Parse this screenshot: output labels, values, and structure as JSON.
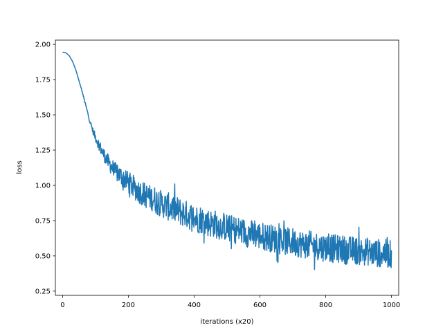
{
  "chart_data": {
    "type": "line",
    "title": "",
    "xlabel": "iterations (x20)",
    "ylabel": "loss",
    "xlim": [
      -22,
      1022
    ],
    "ylim": [
      0.22,
      2.03
    ],
    "grid": false,
    "legend": "none",
    "x_ticks": [
      0,
      200,
      400,
      600,
      800,
      1000
    ],
    "y_ticks": [
      0.25,
      0.5,
      0.75,
      1.0,
      1.25,
      1.5,
      1.75,
      2.0
    ],
    "x_tick_labels": [
      "0",
      "200",
      "400",
      "600",
      "800",
      "1000"
    ],
    "y_tick_labels": [
      "0.25",
      "0.50",
      "0.75",
      "1.00",
      "1.25",
      "1.50",
      "1.75",
      "2.00"
    ],
    "series": [
      {
        "color": "#1f77b4",
        "x_start": 0,
        "x_step": 10,
        "y_low": [
          1.945,
          1.94,
          1.92,
          1.88,
          1.82,
          1.74,
          1.66,
          1.57,
          1.48,
          1.4,
          1.34,
          1.29,
          1.24,
          1.2,
          1.16,
          1.13,
          1.1,
          1.08,
          1.06,
          1.04,
          1.02,
          1.0,
          0.98,
          0.96,
          0.95,
          0.93,
          0.92,
          0.91,
          0.9,
          0.88,
          0.87,
          0.86,
          0.85,
          0.84,
          0.83,
          0.82,
          0.81,
          0.8,
          0.79,
          0.78,
          0.77,
          0.76,
          0.76,
          0.75,
          0.74,
          0.73,
          0.73,
          0.72,
          0.71,
          0.71,
          0.7,
          0.69,
          0.69,
          0.68,
          0.68,
          0.67,
          0.66,
          0.66,
          0.65,
          0.65,
          0.64,
          0.64,
          0.63,
          0.63,
          0.62,
          0.62,
          0.61,
          0.61,
          0.6,
          0.6,
          0.6,
          0.59,
          0.59,
          0.58,
          0.58,
          0.58,
          0.57,
          0.57,
          0.57,
          0.56,
          0.56,
          0.56,
          0.55,
          0.55,
          0.55,
          0.55,
          0.54,
          0.54,
          0.54,
          0.54,
          0.53,
          0.53,
          0.53,
          0.53,
          0.52,
          0.52,
          0.52,
          0.52,
          0.52,
          0.51,
          0.51
        ],
        "y_high": [
          1.945,
          1.94,
          1.92,
          1.88,
          1.82,
          1.74,
          1.66,
          1.57,
          1.48,
          1.4,
          1.34,
          1.29,
          1.24,
          1.2,
          1.16,
          1.13,
          1.1,
          1.08,
          1.06,
          1.04,
          1.02,
          1.0,
          0.98,
          0.96,
          0.95,
          0.93,
          0.92,
          0.91,
          0.9,
          0.88,
          0.87,
          0.86,
          0.85,
          0.84,
          0.83,
          0.82,
          0.81,
          0.8,
          0.79,
          0.78,
          0.77,
          0.76,
          0.76,
          0.75,
          0.74,
          0.73,
          0.73,
          0.72,
          0.71,
          0.71,
          0.7,
          0.69,
          0.69,
          0.68,
          0.68,
          0.67,
          0.66,
          0.66,
          0.65,
          0.65,
          0.64,
          0.64,
          0.63,
          0.63,
          0.62,
          0.62,
          0.61,
          0.61,
          0.6,
          0.6,
          0.6,
          0.59,
          0.59,
          0.58,
          0.58,
          0.58,
          0.57,
          0.57,
          0.57,
          0.56,
          0.56,
          0.56,
          0.55,
          0.55,
          0.55,
          0.55,
          0.54,
          0.54,
          0.54,
          0.54,
          0.53,
          0.53,
          0.53,
          0.53,
          0.52,
          0.52,
          0.52,
          0.52,
          0.52,
          0.51,
          0.51
        ],
        "noise": [
          0.0,
          0.0,
          0.0,
          0.0,
          0.0,
          0.0,
          0.005,
          0.01,
          0.015,
          0.02,
          0.03,
          0.04,
          0.045,
          0.05,
          0.055,
          0.06,
          0.065,
          0.07,
          0.075,
          0.075,
          0.08,
          0.08,
          0.085,
          0.085,
          0.09,
          0.09,
          0.09,
          0.09,
          0.095,
          0.095,
          0.095,
          0.095,
          0.1,
          0.1,
          0.1,
          0.1,
          0.1,
          0.1,
          0.1,
          0.1,
          0.1,
          0.1,
          0.1,
          0.1,
          0.1,
          0.1,
          0.1,
          0.1,
          0.1,
          0.1,
          0.1,
          0.1,
          0.1,
          0.1,
          0.1,
          0.1,
          0.1,
          0.1,
          0.1,
          0.1,
          0.1,
          0.1,
          0.1,
          0.1,
          0.1,
          0.1,
          0.1,
          0.1,
          0.1,
          0.1,
          0.1,
          0.1,
          0.1,
          0.1,
          0.1,
          0.1,
          0.1,
          0.1,
          0.1,
          0.1,
          0.1,
          0.1,
          0.1,
          0.1,
          0.1,
          0.1,
          0.1,
          0.1,
          0.1,
          0.1,
          0.1,
          0.1,
          0.1,
          0.1,
          0.1,
          0.1,
          0.1,
          0.1,
          0.1,
          0.1,
          0.1
        ]
      }
    ]
  }
}
